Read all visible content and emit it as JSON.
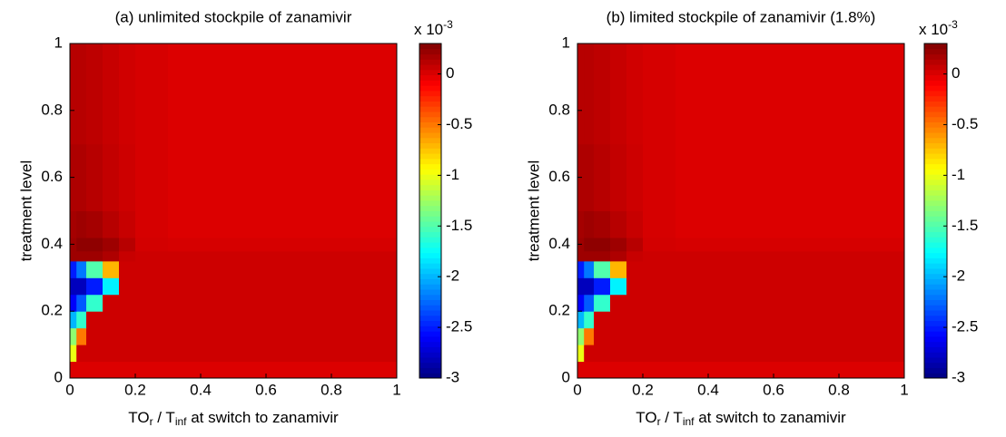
{
  "chart_data": [
    {
      "type": "heatmap",
      "title": "(a) unlimited stockpile of zanamivir",
      "xlabel_parts": [
        "TO",
        "r",
        " / T",
        "inf",
        " at switch to zanamivir"
      ],
      "ylabel": "treatment level",
      "xlim": [
        0,
        1
      ],
      "ylim": [
        0,
        1
      ],
      "xticks": [
        0,
        0.2,
        0.4,
        0.6,
        0.8,
        1
      ],
      "yticks": [
        0,
        0.2,
        0.4,
        0.6,
        0.8,
        1
      ],
      "x_edges": [
        0,
        0.02,
        0.05,
        0.1,
        0.15,
        0.2,
        0.3,
        0.5,
        1
      ],
      "y_edges": [
        0,
        0.05,
        0.1,
        0.15,
        0.2,
        0.25,
        0.3,
        0.35,
        0.38,
        0.42,
        0.5,
        0.7,
        1
      ],
      "z": [
        [
          0,
          0,
          0,
          0,
          0,
          0,
          0,
          0
        ],
        [
          -1.0,
          0.05,
          0.05,
          0.05,
          0.05,
          0.05,
          0.05,
          0.05
        ],
        [
          -1.3,
          -0.5,
          0.05,
          0.05,
          0.05,
          0.05,
          0.05,
          0.05
        ],
        [
          -2.0,
          -1.6,
          0.05,
          0.05,
          0.05,
          0.05,
          0.05,
          0.05
        ],
        [
          -2.6,
          -2.3,
          -1.6,
          0.05,
          0.05,
          0.05,
          0.05,
          0.05
        ],
        [
          -2.8,
          -2.8,
          -2.5,
          -1.8,
          0.05,
          0.05,
          0.05,
          0.05
        ],
        [
          -2.5,
          -2.2,
          -1.5,
          -0.7,
          0.05,
          0.05,
          0.05,
          0.05
        ],
        [
          0.2,
          0.2,
          0.2,
          0.15,
          0.07,
          0.05,
          0.05,
          0.05
        ],
        [
          0.2,
          0.25,
          0.25,
          0.2,
          0.12,
          0.03,
          0.02,
          0.02
        ],
        [
          0.18,
          0.2,
          0.18,
          0.12,
          0.07,
          0.02,
          0,
          0
        ],
        [
          0.15,
          0.15,
          0.12,
          0.08,
          0.05,
          0.02,
          0,
          0
        ],
        [
          0.12,
          0.12,
          0.1,
          0.07,
          0.04,
          0.02,
          0,
          0
        ]
      ],
      "colormap": "jet",
      "clim": [
        -3,
        0.3
      ],
      "colorbar_ticks": [
        -3,
        -2.5,
        -2,
        -1.5,
        -1,
        -0.5,
        0
      ],
      "colorbar_label_parts": [
        "x 10",
        "-3"
      ]
    },
    {
      "type": "heatmap",
      "title": "(b) limited stockpile of zanamivir (1.8%)",
      "xlabel_parts": [
        "TO",
        "r",
        " / T",
        "inf",
        " at switch to zanamivir"
      ],
      "ylabel": "treatment level",
      "xlim": [
        0,
        1
      ],
      "ylim": [
        0,
        1
      ],
      "xticks": [
        0,
        0.2,
        0.4,
        0.6,
        0.8,
        1
      ],
      "yticks": [
        0,
        0.2,
        0.4,
        0.6,
        0.8,
        1
      ],
      "x_edges": [
        0,
        0.02,
        0.05,
        0.1,
        0.15,
        0.2,
        0.3,
        0.5,
        1
      ],
      "y_edges": [
        0,
        0.05,
        0.1,
        0.15,
        0.2,
        0.25,
        0.3,
        0.35,
        0.38,
        0.42,
        0.5,
        0.7,
        1
      ],
      "z": [
        [
          0,
          0,
          0,
          0,
          0,
          0,
          0,
          0
        ],
        [
          -1.0,
          0.05,
          0.05,
          0.05,
          0.05,
          0.05,
          0.05,
          0.05
        ],
        [
          -1.3,
          -0.5,
          0.05,
          0.05,
          0.05,
          0.05,
          0.05,
          0.05
        ],
        [
          -2.0,
          -1.6,
          0.05,
          0.05,
          0.05,
          0.05,
          0.05,
          0.05
        ],
        [
          -2.6,
          -2.3,
          -1.6,
          0.05,
          0.05,
          0.05,
          0.05,
          0.05
        ],
        [
          -2.8,
          -2.8,
          -2.5,
          -1.8,
          0.05,
          0.05,
          0.05,
          0.05
        ],
        [
          -2.5,
          -2.2,
          -1.5,
          -0.7,
          0.05,
          0.05,
          0.05,
          0.05
        ],
        [
          0.2,
          0.2,
          0.2,
          0.15,
          0.07,
          0.05,
          0.05,
          0.05
        ],
        [
          0.2,
          0.25,
          0.25,
          0.2,
          0.12,
          0.03,
          0.02,
          0.02
        ],
        [
          0.18,
          0.2,
          0.18,
          0.12,
          0.07,
          0.02,
          0,
          0
        ],
        [
          0.15,
          0.15,
          0.12,
          0.08,
          0.05,
          0.02,
          0,
          0
        ],
        [
          0.12,
          0.12,
          0.1,
          0.07,
          0.04,
          0.02,
          0,
          0
        ]
      ],
      "colormap": "jet",
      "clim": [
        -3,
        0.3
      ],
      "colorbar_ticks": [
        -3,
        -2.5,
        -2,
        -1.5,
        -1,
        -0.5,
        0
      ],
      "colorbar_label_parts": [
        "x 10",
        "-3"
      ]
    }
  ]
}
